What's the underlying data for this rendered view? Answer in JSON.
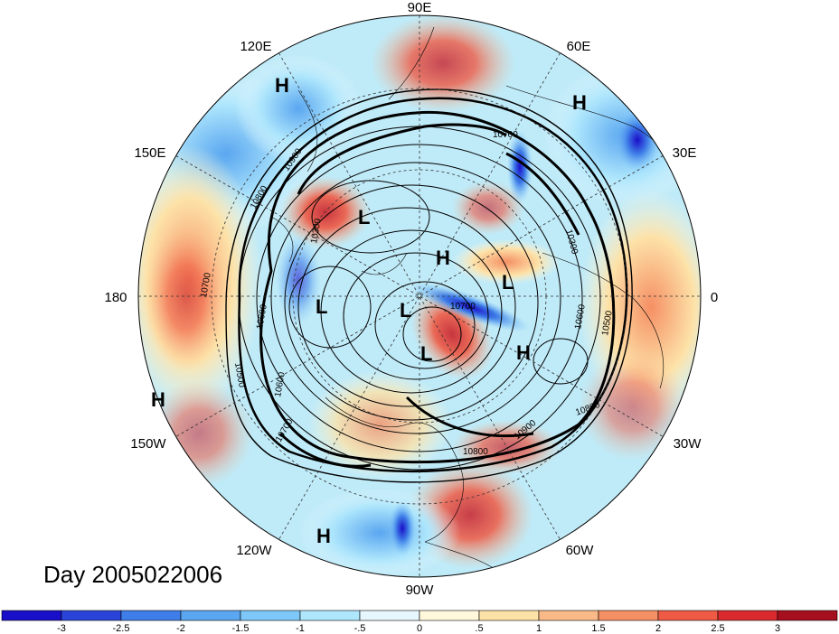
{
  "title": "Day 2005022006",
  "longitude_labels": [
    {
      "id": "90e",
      "text": "90E"
    },
    {
      "id": "60e",
      "text": "60E"
    },
    {
      "id": "30e",
      "text": "30E"
    },
    {
      "id": "0",
      "text": "0"
    },
    {
      "id": "30w",
      "text": "30W"
    },
    {
      "id": "60w",
      "text": "60W"
    },
    {
      "id": "90w",
      "text": "90W"
    },
    {
      "id": "120w",
      "text": "120W"
    },
    {
      "id": "150w",
      "text": "150W"
    },
    {
      "id": "180",
      "text": "180"
    },
    {
      "id": "150e",
      "text": "150E"
    },
    {
      "id": "120e",
      "text": "120E"
    }
  ],
  "pressure_centers": [
    {
      "type": "H"
    },
    {
      "type": "H"
    },
    {
      "type": "H"
    },
    {
      "type": "H"
    },
    {
      "type": "H"
    },
    {
      "type": "H"
    },
    {
      "type": "L"
    },
    {
      "type": "L"
    },
    {
      "type": "L"
    },
    {
      "type": "L"
    },
    {
      "type": "L"
    }
  ],
  "contour_labels": [
    "10800",
    "10900",
    "10600",
    "10700",
    "10500",
    "10300",
    "10600",
    "10700",
    "10800",
    "10900",
    "10800",
    "10700",
    "10300",
    "10600",
    "10500",
    "10700"
  ],
  "colorbar": {
    "colors": [
      "#1a0fc8",
      "#2a44d8",
      "#3f7ee8",
      "#5aa6f0",
      "#7dc8f8",
      "#aee6fc",
      "#e6f8fe",
      "#fff8dc",
      "#fde2a8",
      "#f9b988",
      "#f58f64",
      "#ee5a44",
      "#d82a2e",
      "#a50f1e"
    ],
    "ticks": [
      "-3",
      "-2.5",
      "-2",
      "-1.5",
      "-1",
      "-.5",
      "0",
      ".5",
      "1",
      "1.5",
      "2",
      "2.5",
      "3"
    ]
  }
}
